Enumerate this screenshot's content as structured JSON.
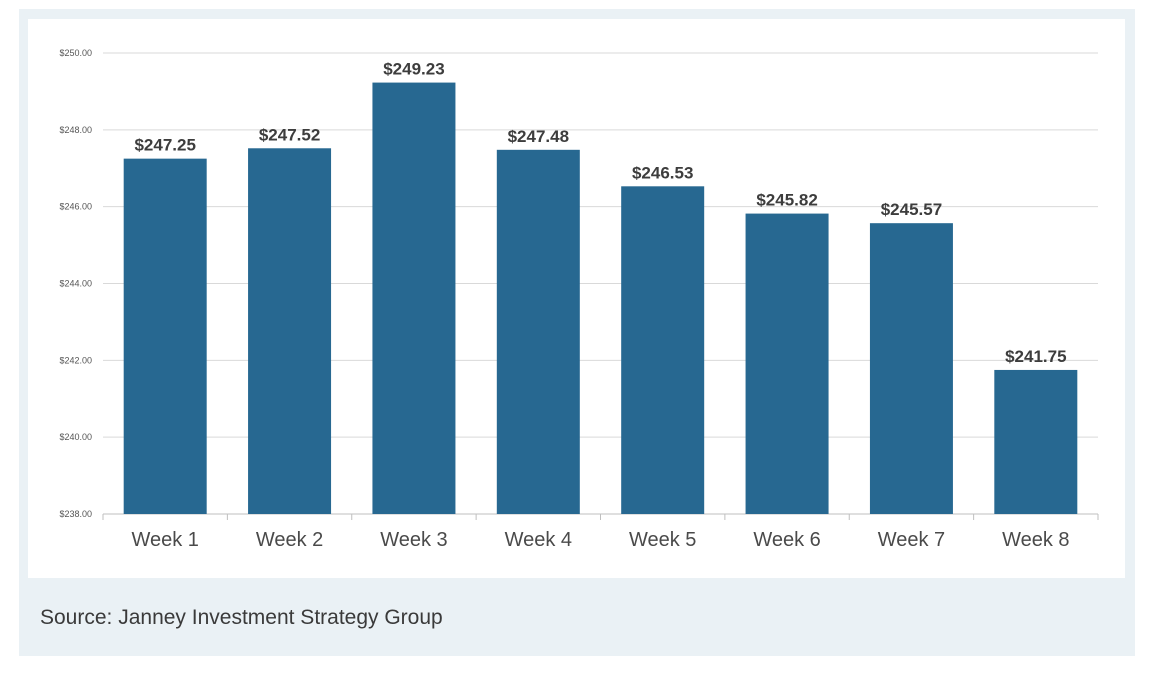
{
  "colors": {
    "bar": "#276891",
    "grid": "#d9d9d9",
    "axis": "#bfbfbf",
    "frame": "#eaf1f5"
  },
  "source": "Source: Janney Investment Strategy Group",
  "chart_data": {
    "type": "bar",
    "categories": [
      "Week 1",
      "Week 2",
      "Week 3",
      "Week 4",
      "Week 5",
      "Week 6",
      "Week 7",
      "Week 8"
    ],
    "values": [
      247.25,
      247.52,
      249.23,
      247.48,
      246.53,
      245.82,
      245.57,
      241.75
    ],
    "data_labels": [
      "$247.25",
      "$247.52",
      "$249.23",
      "$247.48",
      "$246.53",
      "$245.82",
      "$245.57",
      "$241.75"
    ],
    "ylim": [
      238,
      250
    ],
    "yticks": [
      238,
      240,
      242,
      244,
      246,
      248,
      250
    ],
    "ytick_labels": [
      "$238.00",
      "$240.00",
      "$242.00",
      "$244.00",
      "$246.00",
      "$248.00",
      "$250.00"
    ],
    "grid": true,
    "legend": "none",
    "title": "",
    "xlabel": "",
    "ylabel": ""
  }
}
